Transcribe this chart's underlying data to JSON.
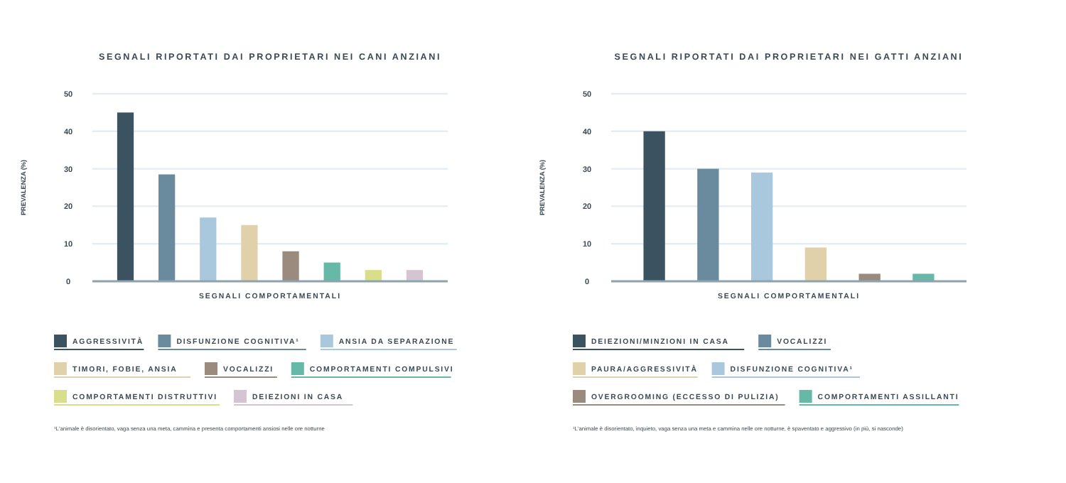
{
  "chart_data": [
    {
      "type": "bar",
      "title": "SEGNALI RIPORTATI DAI PROPRIETARI NEI CANI ANZIANI",
      "xlabel": "SEGNALI COMPORTAMENTALI",
      "ylabel": "PREVALENZA (%)",
      "categories": [
        null,
        null,
        null,
        null,
        null,
        null,
        null,
        null
      ],
      "series": [
        {
          "name": "AGGRESSIVITÀ",
          "color": "#3b5261",
          "values": [
            45,
            null,
            null,
            null,
            null,
            null,
            null,
            null
          ]
        },
        {
          "name": "DISFUNZIONE COGNITIVA¹",
          "color": "#6a8a9e",
          "values": [
            null,
            28.5,
            null,
            null,
            null,
            null,
            null,
            null
          ]
        },
        {
          "name": "ANSIA DA SEPARAZIONE",
          "color": "#a9c8dd",
          "values": [
            null,
            null,
            17,
            null,
            null,
            null,
            null,
            null
          ]
        },
        {
          "name": "TIMORI, FOBIE, ANSIA",
          "color": "#e0d1aa",
          "values": [
            null,
            null,
            null,
            15,
            null,
            null,
            null,
            null
          ]
        },
        {
          "name": "VOCALIZZI",
          "color": "#9a8b7e",
          "values": [
            null,
            null,
            null,
            null,
            8,
            null,
            null,
            null
          ]
        },
        {
          "name": "COMPORTAMENTI COMPULSIVI",
          "color": "#66b9a6",
          "values": [
            null,
            null,
            null,
            null,
            null,
            5,
            null,
            null
          ]
        },
        {
          "name": "COMPORTAMENTI DISTRUTTIVI",
          "color": "#d9de8c",
          "values": [
            null,
            null,
            null,
            null,
            null,
            null,
            3,
            null
          ]
        },
        {
          "name": "DEIEZIONI IN CASA",
          "color": "#d5c5d2",
          "values": [
            null,
            null,
            null,
            null,
            null,
            null,
            null,
            3
          ]
        }
      ],
      "ylim": [
        0,
        50
      ],
      "yticks": [
        0,
        10,
        20,
        30,
        40,
        50
      ],
      "grid": "y",
      "legend": "bottom",
      "annotations": [
        "¹L'animale è disorientato, vaga senza una meta, cammina e presenta comportamenti ansiosi nelle ore notturne"
      ]
    },
    {
      "type": "bar",
      "title": "SEGNALI RIPORTATI DAI PROPRIETARI NEI GATTI ANZIANI",
      "xlabel": "SEGNALI COMPORTAMENTALI",
      "ylabel": "PREVALENZA (%)",
      "categories": [
        null,
        null,
        null,
        null,
        null,
        null
      ],
      "series": [
        {
          "name": "DEIEZIONI/MINZIONI IN CASA",
          "color": "#3b5261",
          "values": [
            40,
            null,
            null,
            null,
            null,
            null
          ]
        },
        {
          "name": "VOCALIZZI",
          "color": "#6a8a9e",
          "values": [
            null,
            30,
            null,
            null,
            null,
            null
          ]
        },
        {
          "name": "PAURA/AGGRESSIVITÀ",
          "color": "#e0d1aa",
          "values": [
            null,
            null,
            null,
            9,
            null,
            null
          ]
        },
        {
          "name": "DISFUNZIONE COGNITIVA¹",
          "color": "#a9c8dd",
          "values": [
            null,
            null,
            29,
            null,
            null,
            null
          ]
        },
        {
          "name": "OVERGROOMING (ECCESSO DI PULIZIA)",
          "color": "#9a8b7e",
          "values": [
            null,
            null,
            null,
            null,
            2,
            null
          ]
        },
        {
          "name": "COMPORTAMENTI ASSILLANTI",
          "color": "#66b9a6",
          "values": [
            null,
            null,
            null,
            null,
            null,
            2
          ]
        }
      ],
      "ylim": [
        0,
        50
      ],
      "yticks": [
        0,
        10,
        20,
        30,
        40,
        50
      ],
      "grid": "y",
      "legend": "bottom",
      "annotations": [
        "¹L'animale è disorientato, inquieto, vaga senza una meta e cammina nelle ore notturne, è spaventato e aggressivo (in più, si nasconde)"
      ]
    }
  ]
}
